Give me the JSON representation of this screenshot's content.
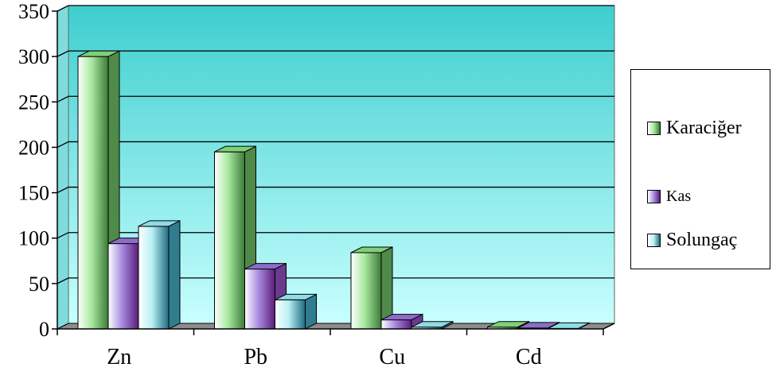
{
  "chart_data": {
    "type": "bar",
    "categories": [
      "Zn",
      "Pb",
      "Cu",
      "Cd"
    ],
    "series": [
      {
        "name": "Karaciğer",
        "values": [
          300,
          195,
          84,
          2
        ],
        "color": "#a8e8a0"
      },
      {
        "name": "Kas",
        "values": [
          94,
          66,
          10,
          1
        ],
        "color": "#a88ce0"
      },
      {
        "name": "Solungaç",
        "values": [
          113,
          32,
          2,
          0.5
        ],
        "color": "#b8f0f4"
      }
    ],
    "ylim": [
      0,
      350
    ],
    "yticks": [
      0,
      50,
      100,
      150,
      200,
      250,
      300,
      350
    ],
    "grid": true,
    "legend_position": "right",
    "style": "3d-clustered-column",
    "background_gradient": [
      "#3ecece",
      "#c8ffff"
    ]
  }
}
